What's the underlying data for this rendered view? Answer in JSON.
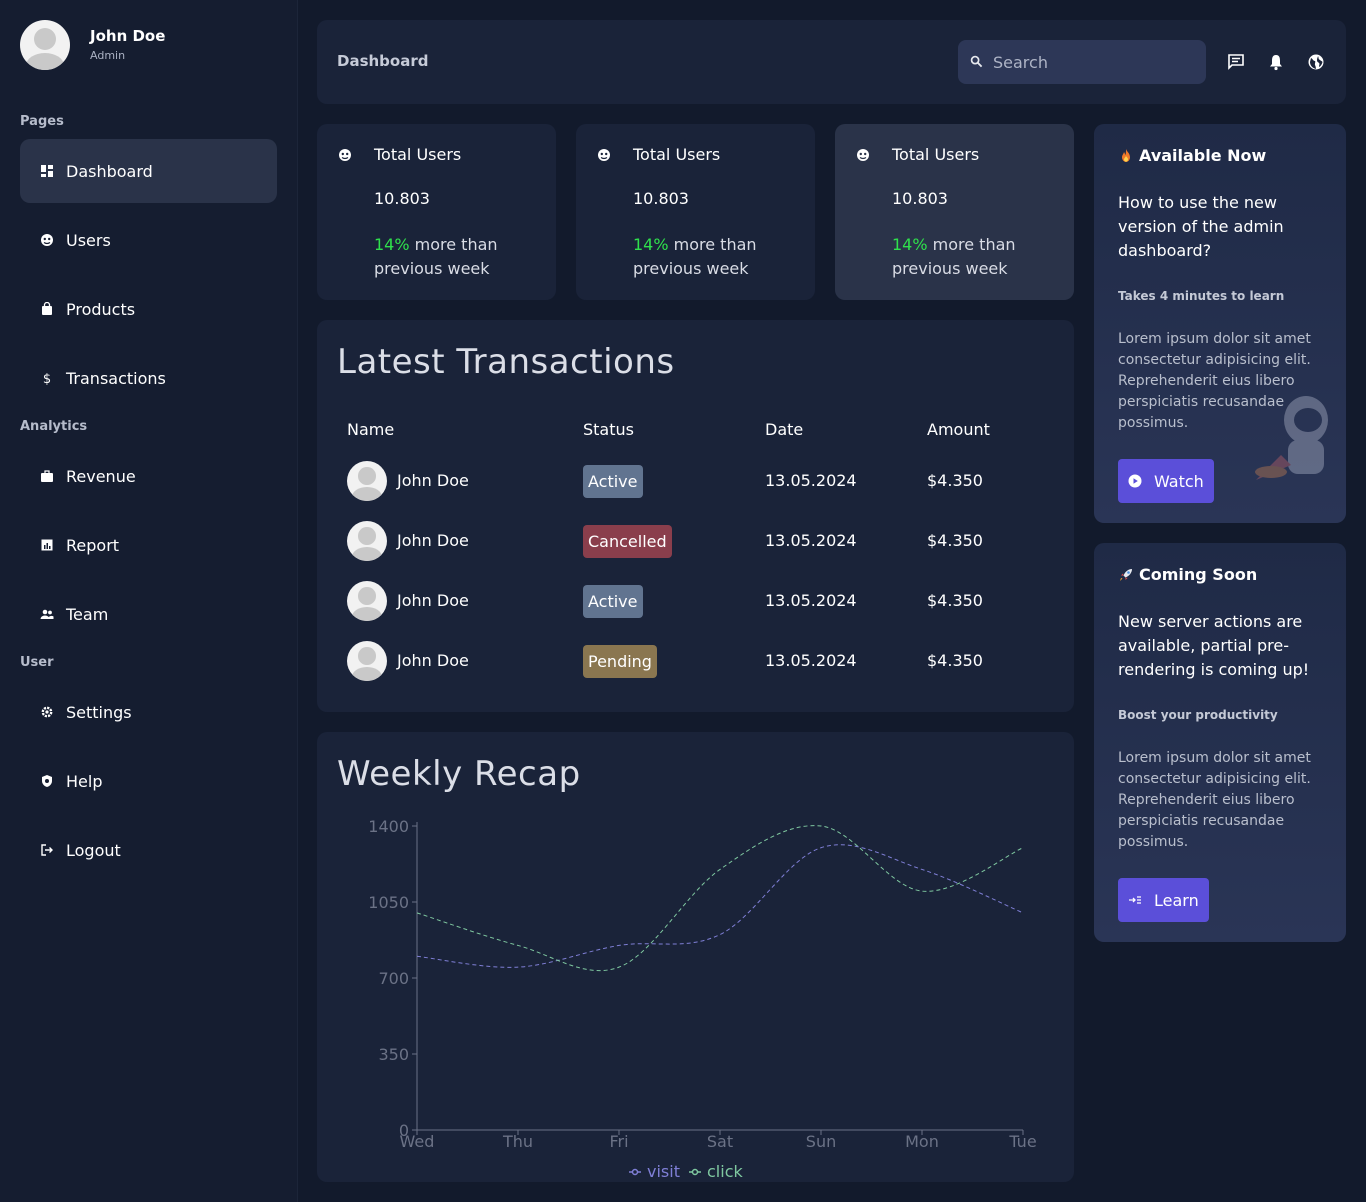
{
  "user": {
    "name": "John Doe",
    "role": "Admin"
  },
  "sidebar": {
    "sections": [
      {
        "title": "Pages"
      },
      {
        "title": "Analytics"
      },
      {
        "title": "User"
      }
    ],
    "items": [
      {
        "label": "Dashboard",
        "icon": "dashboard-icon",
        "active": true
      },
      {
        "label": "Users",
        "icon": "users-icon"
      },
      {
        "label": "Products",
        "icon": "products-icon"
      },
      {
        "label": "Transactions",
        "icon": "dollar-icon"
      },
      {
        "label": "Revenue",
        "icon": "briefcase-icon"
      },
      {
        "label": "Report",
        "icon": "report-icon"
      },
      {
        "label": "Team",
        "icon": "team-icon"
      },
      {
        "label": "Settings",
        "icon": "gear-icon"
      },
      {
        "label": "Help",
        "icon": "shield-icon"
      },
      {
        "label": "Logout",
        "icon": "logout-icon"
      }
    ]
  },
  "header": {
    "title": "Dashboard",
    "search_placeholder": "Search",
    "icons": [
      "chat-icon",
      "bell-icon",
      "globe-icon"
    ]
  },
  "stats": [
    {
      "title": "Total Users",
      "value": "10.803",
      "pct": "14%",
      "note": " more than previous week"
    },
    {
      "title": "Total Users",
      "value": "10.803",
      "pct": "14%",
      "note": " more than previous week"
    },
    {
      "title": "Total Users",
      "value": "10.803",
      "pct": "14%",
      "note": " more than previous week"
    }
  ],
  "transactions": {
    "title": "Latest Transactions",
    "columns": [
      "Name",
      "Status",
      "Date",
      "Amount"
    ],
    "rows": [
      {
        "name": "John Doe",
        "status": "Active",
        "date": "13.05.2024",
        "amount": "$4.350"
      },
      {
        "name": "John Doe",
        "status": "Cancelled",
        "date": "13.05.2024",
        "amount": "$4.350"
      },
      {
        "name": "John Doe",
        "status": "Active",
        "date": "13.05.2024",
        "amount": "$4.350"
      },
      {
        "name": "John Doe",
        "status": "Pending",
        "date": "13.05.2024",
        "amount": "$4.350"
      }
    ]
  },
  "weekly_recap": {
    "title": "Weekly Recap"
  },
  "chart_data": {
    "type": "line",
    "title": "Weekly Recap",
    "categories": [
      "Wed",
      "Thu",
      "Fri",
      "Sat",
      "Sun",
      "Mon",
      "Tue"
    ],
    "ylim": [
      0,
      1400
    ],
    "yticks": [
      0,
      350,
      700,
      1050,
      1400
    ],
    "series": [
      {
        "name": "visit",
        "color": "#7f7fd6",
        "values": [
          800,
          750,
          850,
          900,
          1300,
          1200,
          1000
        ]
      },
      {
        "name": "click",
        "color": "#7fc8a0",
        "values": [
          1000,
          850,
          750,
          1200,
          1400,
          1100,
          1300
        ]
      }
    ],
    "legend": "bottom-center",
    "grid": false
  },
  "info_cards": [
    {
      "title": "Available Now",
      "icon": "fire-icon",
      "heading": "How to use the new version of the admin dashboard?",
      "sub": "Takes 4 minutes to learn",
      "body": "Lorem ipsum dolor sit amet consectetur adipisicing elit. Reprehenderit eius libero perspiciatis recusandae possimus.",
      "button": "Watch",
      "button_icon": "play-icon"
    },
    {
      "title": "Coming Soon",
      "icon": "rocket-icon",
      "heading": "New server actions are available, partial pre-rendering is coming up!",
      "sub": "Boost your productivity",
      "body": "Lorem ipsum dolor sit amet consectetur adipisicing elit. Reprehenderit eius libero perspiciatis recusandae possimus.",
      "button": "Learn",
      "button_icon": "learn-icon"
    }
  ]
}
